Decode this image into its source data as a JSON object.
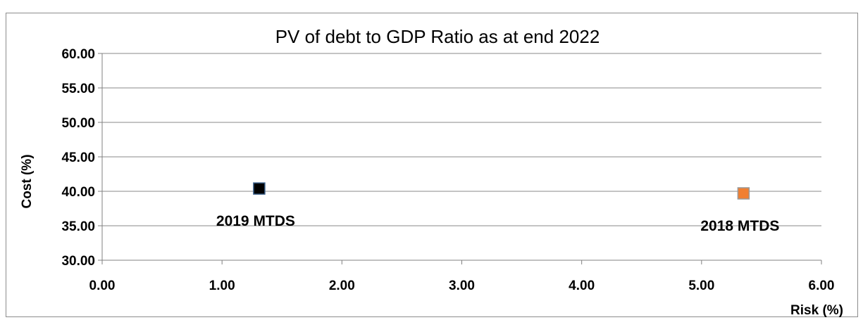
{
  "chart_data": {
    "type": "scatter",
    "title": "PV of debt to GDP Ratio as at end 2022",
    "xlabel": "Risk (%)",
    "ylabel": "Cost (%)",
    "xlim": [
      0,
      6
    ],
    "ylim": [
      30,
      60
    ],
    "x_ticks": [
      "0.00",
      "1.00",
      "2.00",
      "3.00",
      "4.00",
      "5.00",
      "6.00"
    ],
    "y_ticks": [
      "30.00",
      "35.00",
      "40.00",
      "45.00",
      "50.00",
      "55.00",
      "60.00"
    ],
    "grid": "horizontal",
    "series": [
      {
        "name": "2019 MTDS",
        "x": 1.31,
        "y": 40.4,
        "color": "#000000",
        "marker": "square"
      },
      {
        "name": "2018 MTDS",
        "x": 5.35,
        "y": 39.7,
        "color": "#f07f32",
        "marker": "square"
      }
    ],
    "annotations": [
      "2019 MTDS",
      "2018 MTDS"
    ]
  }
}
